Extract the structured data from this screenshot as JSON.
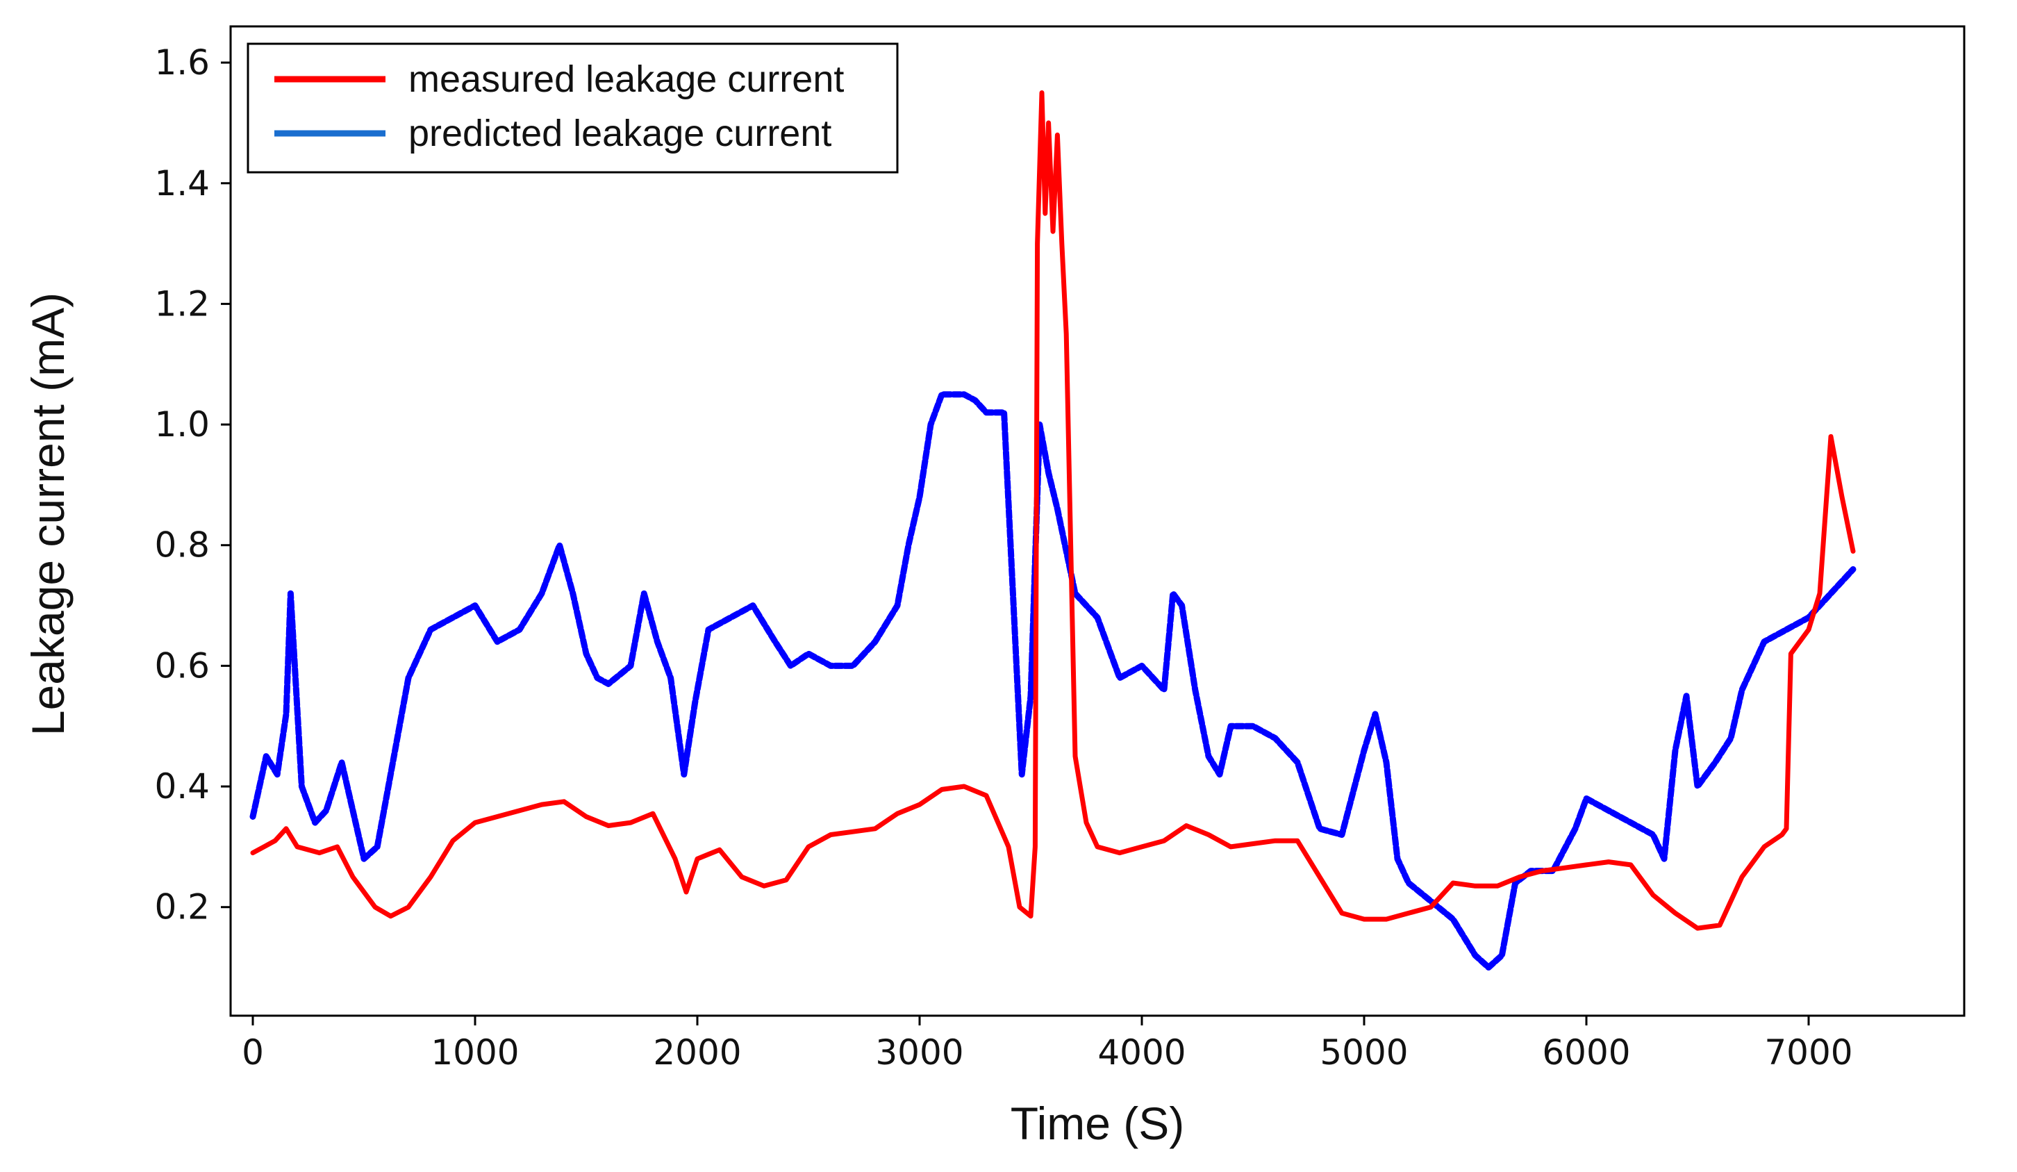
{
  "chart_data": {
    "type": "line",
    "title": "",
    "xlabel": "Time (S)",
    "ylabel": "Leakage current (mA)",
    "xlim": [
      -100,
      7700
    ],
    "ylim": [
      0.02,
      1.66
    ],
    "xticks": [
      0,
      1000,
      2000,
      3000,
      4000,
      5000,
      6000,
      7000
    ],
    "yticks": [
      0.2,
      0.4,
      0.6,
      0.8,
      1.0,
      1.2,
      1.4,
      1.6
    ],
    "ytick_labels": [
      "0.2",
      "0.4",
      "0.6",
      "0.8",
      "1.0",
      "1.2",
      "1.4",
      "1.6"
    ],
    "legend_position": "top-left",
    "series": [
      {
        "name": "measured leakage current",
        "color": "#ff0000",
        "style": "solid",
        "points": [
          [
            0,
            0.29
          ],
          [
            50,
            0.3
          ],
          [
            100,
            0.31
          ],
          [
            150,
            0.33
          ],
          [
            200,
            0.3
          ],
          [
            300,
            0.29
          ],
          [
            380,
            0.3
          ],
          [
            450,
            0.25
          ],
          [
            550,
            0.2
          ],
          [
            620,
            0.185
          ],
          [
            700,
            0.2
          ],
          [
            800,
            0.25
          ],
          [
            900,
            0.31
          ],
          [
            1000,
            0.34
          ],
          [
            1150,
            0.355
          ],
          [
            1300,
            0.37
          ],
          [
            1400,
            0.375
          ],
          [
            1500,
            0.35
          ],
          [
            1600,
            0.335
          ],
          [
            1700,
            0.34
          ],
          [
            1800,
            0.355
          ],
          [
            1900,
            0.28
          ],
          [
            1950,
            0.225
          ],
          [
            2000,
            0.28
          ],
          [
            2100,
            0.295
          ],
          [
            2200,
            0.25
          ],
          [
            2300,
            0.235
          ],
          [
            2400,
            0.245
          ],
          [
            2500,
            0.3
          ],
          [
            2600,
            0.32
          ],
          [
            2700,
            0.325
          ],
          [
            2800,
            0.33
          ],
          [
            2900,
            0.355
          ],
          [
            3000,
            0.37
          ],
          [
            3100,
            0.395
          ],
          [
            3200,
            0.4
          ],
          [
            3300,
            0.385
          ],
          [
            3400,
            0.3
          ],
          [
            3450,
            0.2
          ],
          [
            3500,
            0.185
          ],
          [
            3520,
            0.3
          ],
          [
            3530,
            1.3
          ],
          [
            3550,
            1.55
          ],
          [
            3565,
            1.35
          ],
          [
            3580,
            1.5
          ],
          [
            3600,
            1.32
          ],
          [
            3620,
            1.48
          ],
          [
            3640,
            1.3
          ],
          [
            3660,
            1.15
          ],
          [
            3680,
            0.8
          ],
          [
            3700,
            0.45
          ],
          [
            3750,
            0.34
          ],
          [
            3800,
            0.3
          ],
          [
            3900,
            0.29
          ],
          [
            4000,
            0.3
          ],
          [
            4100,
            0.31
          ],
          [
            4200,
            0.335
          ],
          [
            4300,
            0.32
          ],
          [
            4400,
            0.3
          ],
          [
            4500,
            0.305
          ],
          [
            4600,
            0.31
          ],
          [
            4700,
            0.31
          ],
          [
            4800,
            0.25
          ],
          [
            4900,
            0.19
          ],
          [
            5000,
            0.18
          ],
          [
            5100,
            0.18
          ],
          [
            5200,
            0.19
          ],
          [
            5300,
            0.2
          ],
          [
            5400,
            0.24
          ],
          [
            5500,
            0.235
          ],
          [
            5600,
            0.235
          ],
          [
            5700,
            0.25
          ],
          [
            5800,
            0.26
          ],
          [
            5900,
            0.265
          ],
          [
            6000,
            0.27
          ],
          [
            6100,
            0.275
          ],
          [
            6200,
            0.27
          ],
          [
            6300,
            0.22
          ],
          [
            6400,
            0.19
          ],
          [
            6500,
            0.165
          ],
          [
            6600,
            0.17
          ],
          [
            6700,
            0.25
          ],
          [
            6800,
            0.3
          ],
          [
            6880,
            0.32
          ],
          [
            6900,
            0.33
          ],
          [
            6920,
            0.62
          ],
          [
            7000,
            0.66
          ],
          [
            7050,
            0.72
          ],
          [
            7100,
            0.98
          ],
          [
            7150,
            0.88
          ],
          [
            7200,
            0.79
          ]
        ]
      },
      {
        "name": "predicted leakage current",
        "color": "#0000ff",
        "legend_color": "#1a6ecf",
        "style": "dashed",
        "points": [
          [
            0,
            0.35
          ],
          [
            60,
            0.45
          ],
          [
            110,
            0.42
          ],
          [
            150,
            0.52
          ],
          [
            170,
            0.72
          ],
          [
            220,
            0.4
          ],
          [
            280,
            0.34
          ],
          [
            330,
            0.36
          ],
          [
            400,
            0.44
          ],
          [
            450,
            0.36
          ],
          [
            500,
            0.28
          ],
          [
            560,
            0.3
          ],
          [
            620,
            0.42
          ],
          [
            700,
            0.58
          ],
          [
            800,
            0.66
          ],
          [
            900,
            0.68
          ],
          [
            1000,
            0.7
          ],
          [
            1100,
            0.64
          ],
          [
            1200,
            0.66
          ],
          [
            1300,
            0.72
          ],
          [
            1380,
            0.8
          ],
          [
            1440,
            0.72
          ],
          [
            1500,
            0.62
          ],
          [
            1550,
            0.58
          ],
          [
            1600,
            0.57
          ],
          [
            1700,
            0.6
          ],
          [
            1760,
            0.72
          ],
          [
            1820,
            0.64
          ],
          [
            1880,
            0.58
          ],
          [
            1940,
            0.42
          ],
          [
            1990,
            0.54
          ],
          [
            2050,
            0.66
          ],
          [
            2150,
            0.68
          ],
          [
            2250,
            0.7
          ],
          [
            2350,
            0.64
          ],
          [
            2420,
            0.6
          ],
          [
            2500,
            0.62
          ],
          [
            2600,
            0.6
          ],
          [
            2700,
            0.6
          ],
          [
            2800,
            0.64
          ],
          [
            2900,
            0.7
          ],
          [
            2950,
            0.8
          ],
          [
            3000,
            0.88
          ],
          [
            3050,
            1.0
          ],
          [
            3100,
            1.05
          ],
          [
            3200,
            1.05
          ],
          [
            3250,
            1.04
          ],
          [
            3300,
            1.02
          ],
          [
            3380,
            1.02
          ],
          [
            3420,
            0.72
          ],
          [
            3460,
            0.42
          ],
          [
            3500,
            0.55
          ],
          [
            3540,
            1.0
          ],
          [
            3580,
            0.92
          ],
          [
            3620,
            0.86
          ],
          [
            3700,
            0.72
          ],
          [
            3800,
            0.68
          ],
          [
            3900,
            0.58
          ],
          [
            4000,
            0.6
          ],
          [
            4050,
            0.58
          ],
          [
            4100,
            0.56
          ],
          [
            4140,
            0.72
          ],
          [
            4180,
            0.7
          ],
          [
            4240,
            0.56
          ],
          [
            4300,
            0.45
          ],
          [
            4350,
            0.42
          ],
          [
            4400,
            0.5
          ],
          [
            4500,
            0.5
          ],
          [
            4600,
            0.48
          ],
          [
            4700,
            0.44
          ],
          [
            4800,
            0.33
          ],
          [
            4900,
            0.32
          ],
          [
            5000,
            0.46
          ],
          [
            5050,
            0.52
          ],
          [
            5100,
            0.44
          ],
          [
            5150,
            0.28
          ],
          [
            5200,
            0.24
          ],
          [
            5300,
            0.21
          ],
          [
            5400,
            0.18
          ],
          [
            5450,
            0.15
          ],
          [
            5500,
            0.12
          ],
          [
            5560,
            0.1
          ],
          [
            5620,
            0.12
          ],
          [
            5680,
            0.24
          ],
          [
            5750,
            0.26
          ],
          [
            5850,
            0.26
          ],
          [
            5950,
            0.33
          ],
          [
            6000,
            0.38
          ],
          [
            6100,
            0.36
          ],
          [
            6200,
            0.34
          ],
          [
            6300,
            0.32
          ],
          [
            6350,
            0.28
          ],
          [
            6400,
            0.46
          ],
          [
            6450,
            0.55
          ],
          [
            6500,
            0.4
          ],
          [
            6580,
            0.44
          ],
          [
            6650,
            0.48
          ],
          [
            6700,
            0.56
          ],
          [
            6800,
            0.64
          ],
          [
            6900,
            0.66
          ],
          [
            7000,
            0.68
          ],
          [
            7100,
            0.72
          ],
          [
            7200,
            0.76
          ]
        ]
      }
    ]
  }
}
